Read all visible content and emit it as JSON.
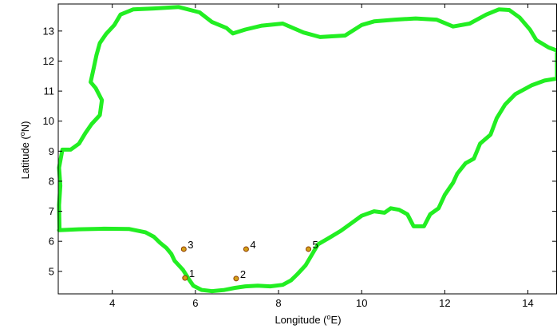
{
  "chart_data": {
    "type": "scatter",
    "xlabel": "Longitude (",
    "xlabel_sup": "o",
    "xlabel_suffix": "E)",
    "ylabel": "Latitude (",
    "ylabel_sup": "o",
    "ylabel_suffix": "N)",
    "xlim": [
      2.7,
      14.7
    ],
    "ylim": [
      4.25,
      13.9
    ],
    "xticks": [
      4,
      6,
      8,
      10,
      12,
      14
    ],
    "yticks": [
      5,
      6,
      7,
      8,
      9,
      10,
      11,
      12,
      13
    ],
    "grid": false,
    "boundary_color": "#22ee22",
    "marker_color": "#d4a017",
    "marker_edge_color": "#8b3a00",
    "points": [
      {
        "label": "1",
        "lon": 5.75,
        "lat": 4.78
      },
      {
        "label": "2",
        "lon": 6.98,
        "lat": 4.76
      },
      {
        "label": "3",
        "lon": 5.72,
        "lat": 5.74
      },
      {
        "label": "4",
        "lon": 7.22,
        "lat": 5.74
      },
      {
        "label": "5",
        "lon": 8.72,
        "lat": 5.74
      }
    ],
    "boundary": [
      [
        2.72,
        6.37
      ],
      [
        3.2,
        6.4
      ],
      [
        3.8,
        6.42
      ],
      [
        4.4,
        6.41
      ],
      [
        4.8,
        6.3
      ],
      [
        5.0,
        6.15
      ],
      [
        5.15,
        5.95
      ],
      [
        5.3,
        5.78
      ],
      [
        5.42,
        5.58
      ],
      [
        5.5,
        5.35
      ],
      [
        5.7,
        5.05
      ],
      [
        5.85,
        4.72
      ],
      [
        5.95,
        4.52
      ],
      [
        6.15,
        4.38
      ],
      [
        6.4,
        4.34
      ],
      [
        6.7,
        4.38
      ],
      [
        6.95,
        4.45
      ],
      [
        7.2,
        4.5
      ],
      [
        7.5,
        4.52
      ],
      [
        7.8,
        4.5
      ],
      [
        8.1,
        4.55
      ],
      [
        8.3,
        4.7
      ],
      [
        8.45,
        4.9
      ],
      [
        8.65,
        5.2
      ],
      [
        8.8,
        5.55
      ],
      [
        8.95,
        5.9
      ],
      [
        9.2,
        6.1
      ],
      [
        9.5,
        6.35
      ],
      [
        9.75,
        6.6
      ],
      [
        10.0,
        6.85
      ],
      [
        10.3,
        7.0
      ],
      [
        10.55,
        6.95
      ],
      [
        10.7,
        7.1
      ],
      [
        10.9,
        7.05
      ],
      [
        11.1,
        6.9
      ],
      [
        11.25,
        6.5
      ],
      [
        11.5,
        6.5
      ],
      [
        11.65,
        6.9
      ],
      [
        11.85,
        7.1
      ],
      [
        12.0,
        7.55
      ],
      [
        12.2,
        7.95
      ],
      [
        12.3,
        8.25
      ],
      [
        12.5,
        8.6
      ],
      [
        12.7,
        8.75
      ],
      [
        12.85,
        9.25
      ],
      [
        13.1,
        9.55
      ],
      [
        13.25,
        10.1
      ],
      [
        13.45,
        10.55
      ],
      [
        13.7,
        10.9
      ],
      [
        14.1,
        11.2
      ],
      [
        14.4,
        11.35
      ],
      [
        14.7,
        11.42
      ],
      [
        14.7,
        12.35
      ],
      [
        14.5,
        12.45
      ],
      [
        14.2,
        12.7
      ],
      [
        14.05,
        13.05
      ],
      [
        13.8,
        13.45
      ],
      [
        13.55,
        13.7
      ],
      [
        13.3,
        13.72
      ],
      [
        13.0,
        13.55
      ],
      [
        12.6,
        13.25
      ],
      [
        12.2,
        13.15
      ],
      [
        11.8,
        13.38
      ],
      [
        11.3,
        13.42
      ],
      [
        10.8,
        13.38
      ],
      [
        10.3,
        13.32
      ],
      [
        10.0,
        13.2
      ],
      [
        9.6,
        12.85
      ],
      [
        9.0,
        12.8
      ],
      [
        8.6,
        12.95
      ],
      [
        8.1,
        13.25
      ],
      [
        7.6,
        13.18
      ],
      [
        7.2,
        13.05
      ],
      [
        6.9,
        12.92
      ],
      [
        6.75,
        13.1
      ],
      [
        6.4,
        13.3
      ],
      [
        6.1,
        13.62
      ],
      [
        5.6,
        13.8
      ],
      [
        5.0,
        13.75
      ],
      [
        4.5,
        13.72
      ],
      [
        4.2,
        13.55
      ],
      [
        4.05,
        13.2
      ],
      [
        3.85,
        12.9
      ],
      [
        3.7,
        12.6
      ],
      [
        3.62,
        12.2
      ],
      [
        3.55,
        11.75
      ],
      [
        3.48,
        11.3
      ],
      [
        3.6,
        11.1
      ],
      [
        3.75,
        10.7
      ],
      [
        3.7,
        10.2
      ],
      [
        3.5,
        9.9
      ],
      [
        3.35,
        9.6
      ],
      [
        3.2,
        9.25
      ],
      [
        3.0,
        9.05
      ],
      [
        2.8,
        9.05
      ],
      [
        2.72,
        8.45
      ],
      [
        2.75,
        7.85
      ],
      [
        2.72,
        7.2
      ],
      [
        2.73,
        6.37
      ]
    ]
  }
}
